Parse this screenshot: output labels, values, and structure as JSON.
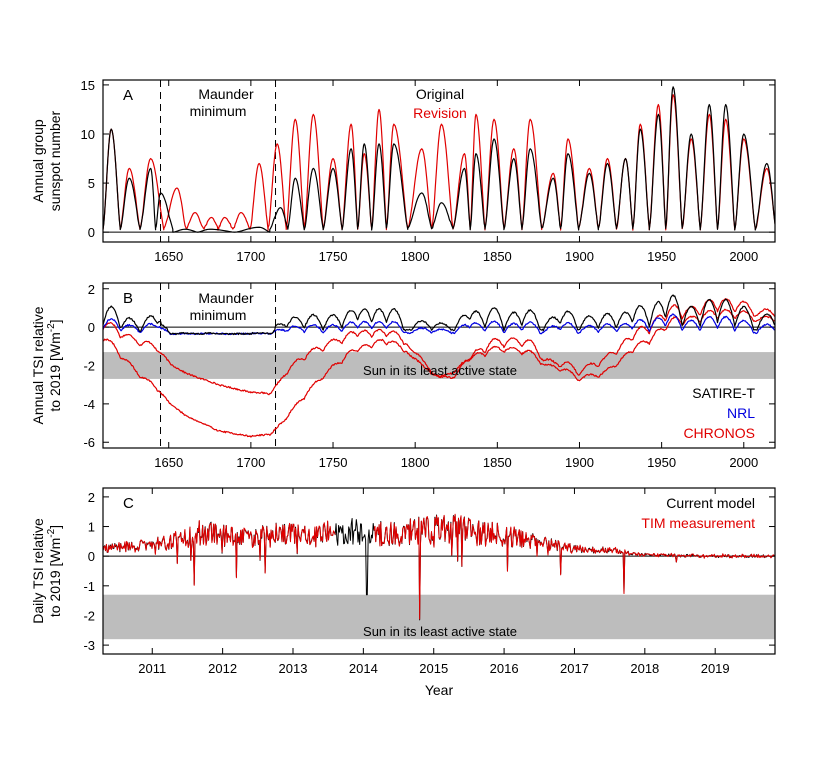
{
  "chart_data": [
    {
      "panel": "A",
      "type": "line",
      "ylabel": [
        "Annual group",
        "sunspot number"
      ],
      "xlim": [
        1610,
        2019
      ],
      "ylim": [
        -1,
        15.5
      ],
      "xticks": [
        1650,
        1700,
        1750,
        1800,
        1850,
        1900,
        1950,
        2000
      ],
      "yticks": [
        0,
        5,
        10,
        15
      ],
      "annotations": {
        "maunder_line1": "Maunder",
        "maunder_line2": "minimum"
      },
      "legend": {
        "placement": "top-center"
      },
      "maunder_bounds": [
        1645,
        1715
      ],
      "series": [
        {
          "name": "Original",
          "color": "#000000",
          "cycle_peaks": [
            [
              1615,
              10.5
            ],
            [
              1626,
              5.5
            ],
            [
              1639,
              6.5
            ],
            [
              1645,
              4.0
            ],
            [
              1660,
              0.3
            ],
            [
              1675,
              0.3
            ],
            [
              1705,
              0.5
            ],
            [
              1718,
              2.5
            ],
            [
              1727,
              5.5
            ],
            [
              1738,
              6.5
            ],
            [
              1750,
              6.5
            ],
            [
              1761,
              8.5
            ],
            [
              1769,
              9.0
            ],
            [
              1778,
              9.0
            ],
            [
              1787,
              9.0
            ],
            [
              1804,
              4.0
            ],
            [
              1816,
              3.0
            ],
            [
              1830,
              6.5
            ],
            [
              1837,
              8.0
            ],
            [
              1848,
              9.5
            ],
            [
              1860,
              7.5
            ],
            [
              1870,
              8.5
            ],
            [
              1884,
              5.5
            ],
            [
              1893,
              8.0
            ],
            [
              1906,
              6.0
            ],
            [
              1917,
              7.0
            ],
            [
              1928,
              7.5
            ],
            [
              1937,
              10.5
            ],
            [
              1948,
              12.0
            ],
            [
              1957,
              14.8
            ],
            [
              1968,
              10.0
            ],
            [
              1979,
              13.0
            ],
            [
              1989,
              13.0
            ],
            [
              2000,
              10.0
            ],
            [
              2014,
              7.0
            ]
          ]
        },
        {
          "name": "Revision",
          "color": "#e00000",
          "cycle_peaks": [
            [
              1615,
              10.5
            ],
            [
              1626,
              6.5
            ],
            [
              1639,
              7.5
            ],
            [
              1655,
              4.5
            ],
            [
              1666,
              2.0
            ],
            [
              1676,
              1.5
            ],
            [
              1684,
              1.5
            ],
            [
              1694,
              2.0
            ],
            [
              1705,
              7.0
            ],
            [
              1716,
              9.0
            ],
            [
              1727,
              11.5
            ],
            [
              1738,
              12.0
            ],
            [
              1750,
              7.5
            ],
            [
              1761,
              11.0
            ],
            [
              1769,
              8.0
            ],
            [
              1778,
              12.5
            ],
            [
              1787,
              11.0
            ],
            [
              1804,
              8.5
            ],
            [
              1816,
              11.0
            ],
            [
              1830,
              8.0
            ],
            [
              1837,
              12.0
            ],
            [
              1848,
              11.5
            ],
            [
              1860,
              8.5
            ],
            [
              1870,
              11.5
            ],
            [
              1884,
              6.0
            ],
            [
              1893,
              9.5
            ],
            [
              1906,
              6.5
            ],
            [
              1917,
              7.5
            ],
            [
              1928,
              7.5
            ],
            [
              1937,
              11.0
            ],
            [
              1948,
              13.0
            ],
            [
              1957,
              14.0
            ],
            [
              1968,
              9.5
            ],
            [
              1979,
              12.0
            ],
            [
              1989,
              11.5
            ],
            [
              2000,
              9.5
            ],
            [
              2014,
              6.5
            ]
          ]
        }
      ]
    },
    {
      "panel": "B",
      "type": "line",
      "ylabel": [
        "Annual TSI relative",
        "to 2019 [Wm",
        "-2",
        "]"
      ],
      "xlim": [
        1610,
        2019
      ],
      "ylim": [
        -6.3,
        2.3
      ],
      "xticks": [
        1650,
        1700,
        1750,
        1800,
        1850,
        1900,
        1950,
        2000
      ],
      "yticks": [
        -6,
        -4,
        -2,
        0,
        2
      ],
      "annotations": {
        "maunder_line1": "Maunder",
        "maunder_line2": "minimum",
        "band_label": "Sun in its least active state"
      },
      "band": [
        -2.7,
        -1.3
      ],
      "legend": {
        "placement": "bottom-right"
      },
      "series": [
        {
          "name": "SATIRE-T",
          "color": "#000000"
        },
        {
          "name": "NRL",
          "color": "#0000e0"
        },
        {
          "name": "CHRONOS",
          "color": "#e00000"
        }
      ],
      "chronos_upper_envelope": [
        [
          1610,
          -0.3
        ],
        [
          1620,
          -0.6
        ],
        [
          1635,
          -1.0
        ],
        [
          1645,
          -1.6
        ],
        [
          1660,
          -2.4
        ],
        [
          1680,
          -3.0
        ],
        [
          1700,
          -3.4
        ],
        [
          1712,
          -3.5
        ],
        [
          1720,
          -2.7
        ],
        [
          1730,
          -1.9
        ],
        [
          1745,
          -1.2
        ],
        [
          1760,
          -0.8
        ],
        [
          1780,
          -0.7
        ],
        [
          1795,
          -0.9
        ],
        [
          1805,
          -2.0
        ],
        [
          1815,
          -2.8
        ],
        [
          1825,
          -2.6
        ],
        [
          1840,
          -1.5
        ],
        [
          1855,
          -1.0
        ],
        [
          1870,
          -1.2
        ],
        [
          1885,
          -2.2
        ],
        [
          1900,
          -2.5
        ],
        [
          1915,
          -2.0
        ],
        [
          1930,
          -1.0
        ],
        [
          1945,
          -0.3
        ],
        [
          1960,
          0.3
        ],
        [
          1980,
          0.6
        ],
        [
          2000,
          0.7
        ],
        [
          2019,
          0.4
        ]
      ],
      "chronos_lower_envelope": [
        [
          1610,
          -0.8
        ],
        [
          1620,
          -1.6
        ],
        [
          1635,
          -2.8
        ],
        [
          1645,
          -3.6
        ],
        [
          1660,
          -4.6
        ],
        [
          1680,
          -5.4
        ],
        [
          1700,
          -5.7
        ],
        [
          1712,
          -5.6
        ],
        [
          1720,
          -5.0
        ],
        [
          1730,
          -4.0
        ],
        [
          1745,
          -2.6
        ],
        [
          1760,
          -1.6
        ],
        [
          1780,
          -1.0
        ],
        [
          1795,
          -1.3
        ],
        [
          1805,
          -2.2
        ],
        [
          1815,
          -2.7
        ],
        [
          1825,
          -2.3
        ],
        [
          1840,
          -1.6
        ],
        [
          1855,
          -1.3
        ],
        [
          1870,
          -1.6
        ],
        [
          1885,
          -2.3
        ],
        [
          1900,
          -2.8
        ],
        [
          1915,
          -2.6
        ],
        [
          1930,
          -1.6
        ],
        [
          1945,
          -0.8
        ],
        [
          1960,
          0.0
        ],
        [
          1980,
          0.3
        ],
        [
          2000,
          0.4
        ],
        [
          2019,
          0.2
        ]
      ]
    },
    {
      "panel": "C",
      "type": "line",
      "ylabel": [
        "Daily TSI relative",
        "to 2019 [Wm",
        "-2",
        "]"
      ],
      "xlabel": "Year",
      "xlim": [
        2010.3,
        2019.85
      ],
      "ylim": [
        -3.3,
        2.3
      ],
      "xticks": [
        2011,
        2012,
        2013,
        2014,
        2015,
        2016,
        2017,
        2018,
        2019
      ],
      "yticks": [
        -3,
        -2,
        -1,
        0,
        1,
        2
      ],
      "annotations": {
        "band_label": "Sun in its least active state"
      },
      "band": [
        -2.8,
        -1.3
      ],
      "legend": {
        "placement": "top-right"
      },
      "gaps": [
        [
          2013.6,
          2014.15
        ]
      ],
      "series": [
        {
          "name": "Current model",
          "color": "#000000"
        },
        {
          "name": "TIM measurement",
          "color": "#e00000"
        }
      ],
      "mean_level": [
        [
          2010.3,
          0.25
        ],
        [
          2010.8,
          0.35
        ],
        [
          2011.2,
          0.45
        ],
        [
          2011.7,
          0.8
        ],
        [
          2012.2,
          0.65
        ],
        [
          2012.8,
          0.75
        ],
        [
          2013.3,
          0.7
        ],
        [
          2013.8,
          0.85
        ],
        [
          2014.3,
          0.75
        ],
        [
          2014.8,
          0.9
        ],
        [
          2015.2,
          0.95
        ],
        [
          2015.6,
          0.8
        ],
        [
          2016.0,
          0.7
        ],
        [
          2016.5,
          0.45
        ],
        [
          2017.0,
          0.25
        ],
        [
          2017.5,
          0.2
        ],
        [
          2018.0,
          0.05
        ],
        [
          2018.5,
          0.02
        ],
        [
          2019.0,
          0.0
        ],
        [
          2019.85,
          0.0
        ]
      ],
      "dips": [
        [
          2011.6,
          -0.95
        ],
        [
          2012.2,
          -0.7
        ],
        [
          2012.6,
          -0.55
        ],
        [
          2014.05,
          -1.3
        ],
        [
          2014.8,
          -2.15
        ],
        [
          2015.4,
          -0.35
        ],
        [
          2016.05,
          -0.5
        ],
        [
          2016.8,
          -0.6
        ],
        [
          2017.7,
          -1.25
        ],
        [
          2018.45,
          -0.2
        ]
      ]
    }
  ]
}
